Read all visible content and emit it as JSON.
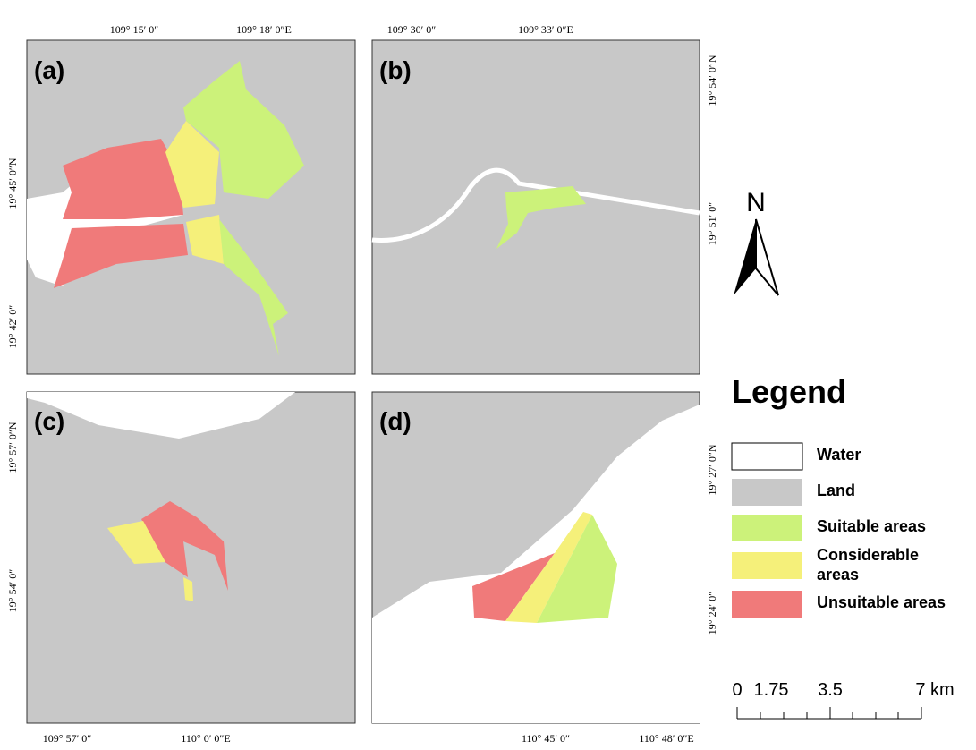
{
  "panels": [
    {
      "label": "(a)",
      "coords": [
        "109° 15′ 0″",
        "109° 18′ 0″E",
        "19° 45′ 0″N",
        "19° 42′ 0″"
      ]
    },
    {
      "label": "(b)",
      "coords": [
        "109° 30′ 0″",
        "109° 33′ 0″E",
        "19° 54′ 0″N",
        "19° 51′ 0″"
      ]
    },
    {
      "label": "(c)",
      "coords": [
        "19° 57′ 0″N",
        "19° 54′ 0″",
        "109° 57′ 0″",
        "110° 0′ 0″E"
      ]
    },
    {
      "label": "(d)",
      "coords": [
        "19° 27′ 0″N",
        "19° 24′ 0″",
        "110° 45′ 0″",
        "110° 48′ 0″E"
      ]
    }
  ],
  "north": "N",
  "legend": {
    "title": "Legend",
    "items": [
      {
        "label": "Water",
        "color": "#ffffff"
      },
      {
        "label": "Land",
        "color": "#c8c8c8"
      },
      {
        "label": "Suitable areas",
        "color": "#ccf27a"
      },
      {
        "label": "Considerable areas",
        "color": "#f5f07a"
      },
      {
        "label": "Unsuitable areas",
        "color": "#f07a7a"
      }
    ]
  },
  "scale": [
    "0",
    "1.75",
    "3.5",
    "7 km"
  ]
}
